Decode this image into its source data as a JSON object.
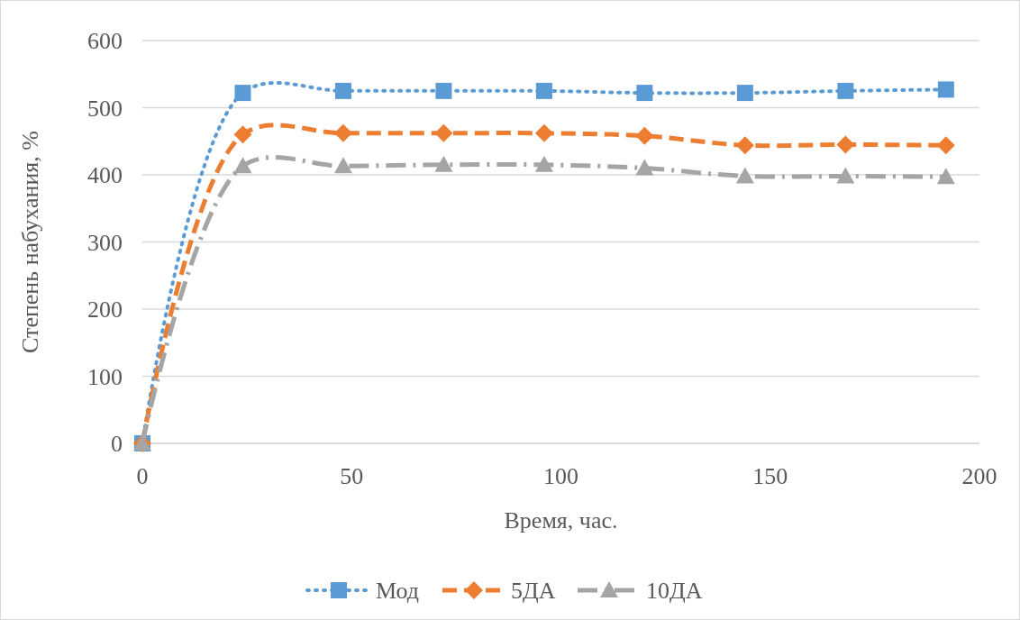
{
  "chart_data": {
    "type": "line",
    "xlabel": "Время, час.",
    "ylabel": "Степень набухания, %",
    "x": [
      0,
      24,
      48,
      72,
      96,
      120,
      144,
      168,
      192
    ],
    "series": [
      {
        "name": "Мод",
        "color": "#5b9bd5",
        "marker": "square",
        "line_style": "dotted",
        "values": [
          0,
          522,
          525,
          525,
          525,
          522,
          522,
          525,
          527
        ]
      },
      {
        "name": "5ДА",
        "color": "#ed7d31",
        "marker": "diamond",
        "line_style": "dashed",
        "values": [
          0,
          460,
          462,
          462,
          462,
          458,
          444,
          445,
          444
        ]
      },
      {
        "name": "10ДА",
        "color": "#a5a5a5",
        "marker": "triangle",
        "line_style": "dashdot",
        "values": [
          0,
          413,
          413,
          415,
          415,
          410,
          398,
          398,
          397
        ]
      }
    ],
    "xlim": [
      0,
      200
    ],
    "xticks": [
      0,
      50,
      100,
      150,
      200
    ],
    "ylim": [
      0,
      600
    ],
    "yticks": [
      0,
      100,
      200,
      300,
      400,
      500,
      600
    ],
    "grid": "y",
    "legend": "bottom"
  }
}
